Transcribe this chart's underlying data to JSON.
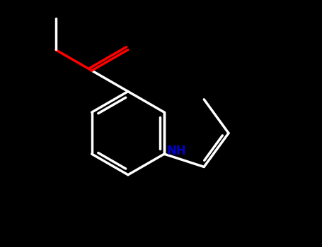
{
  "background_color": "#000000",
  "bond_color": "#ffffff",
  "oxygen_color": "#ff0000",
  "nitrogen_color": "#0000cd",
  "bond_width": 2.5,
  "figsize": [
    4.55,
    3.5
  ],
  "dpi": 100,
  "xlim": [
    0,
    10
  ],
  "ylim": [
    0,
    7.7
  ]
}
